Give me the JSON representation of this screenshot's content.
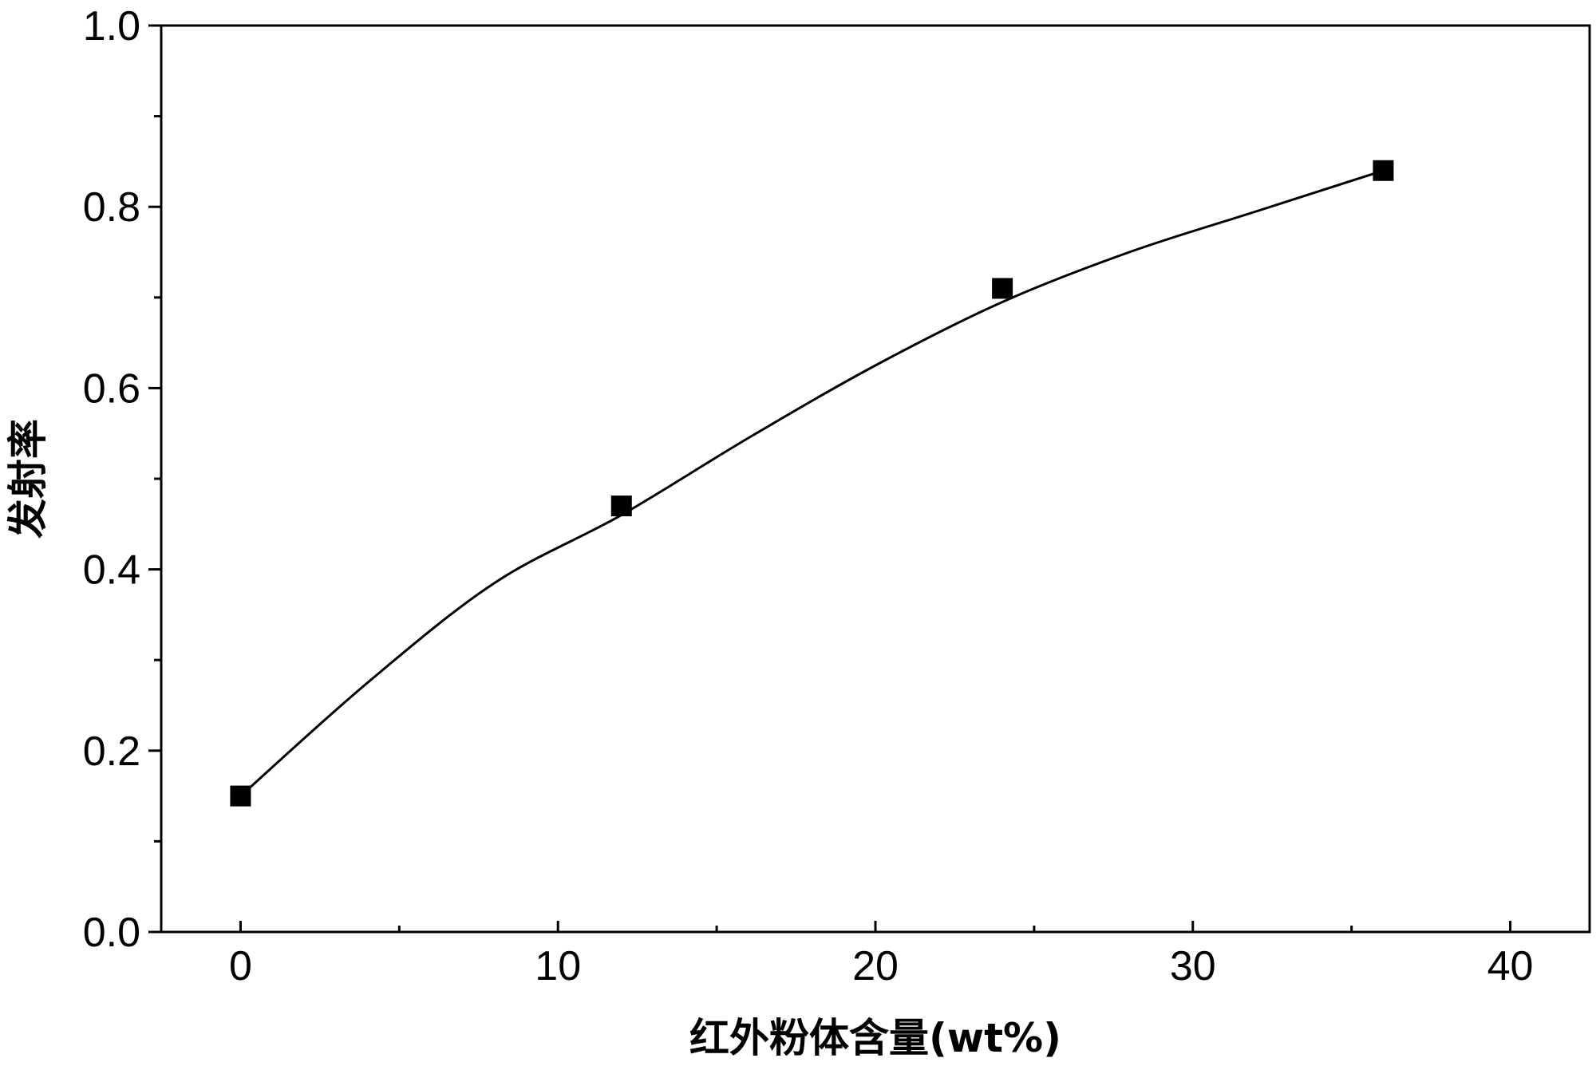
{
  "chart_data": {
    "type": "scatter",
    "title": "",
    "xlabel": "红外粉体含量(wt%)",
    "ylabel": "发射率",
    "xlim": [
      -2.5,
      42.5
    ],
    "ylim": [
      0.0,
      1.0
    ],
    "x_ticks": [
      0,
      10,
      20,
      30,
      40
    ],
    "x_tick_labels": [
      "0",
      "10",
      "20",
      "30",
      "40"
    ],
    "x_minor_ticks": [
      5,
      15,
      25,
      35
    ],
    "y_ticks": [
      0.0,
      0.2,
      0.4,
      0.6,
      0.8,
      1.0
    ],
    "y_tick_labels": [
      "0.0",
      "0.2",
      "0.4",
      "0.6",
      "0.8",
      "1.0"
    ],
    "y_minor_ticks": [
      0.1,
      0.3,
      0.5,
      0.7,
      0.9
    ],
    "grid": false,
    "legend": "none",
    "series": [
      {
        "marker": "square",
        "color": "#000000",
        "x": [
          0,
          12,
          24,
          36
        ],
        "y": [
          0.15,
          0.47,
          0.71,
          0.84
        ]
      }
    ],
    "fit_curve": {
      "style": "line",
      "color": "#000000",
      "x": [
        0,
        4,
        8,
        12,
        16,
        20,
        24,
        28,
        32,
        36
      ],
      "y": [
        0.15,
        0.275,
        0.385,
        0.46,
        0.545,
        0.625,
        0.695,
        0.75,
        0.795,
        0.84
      ]
    }
  }
}
